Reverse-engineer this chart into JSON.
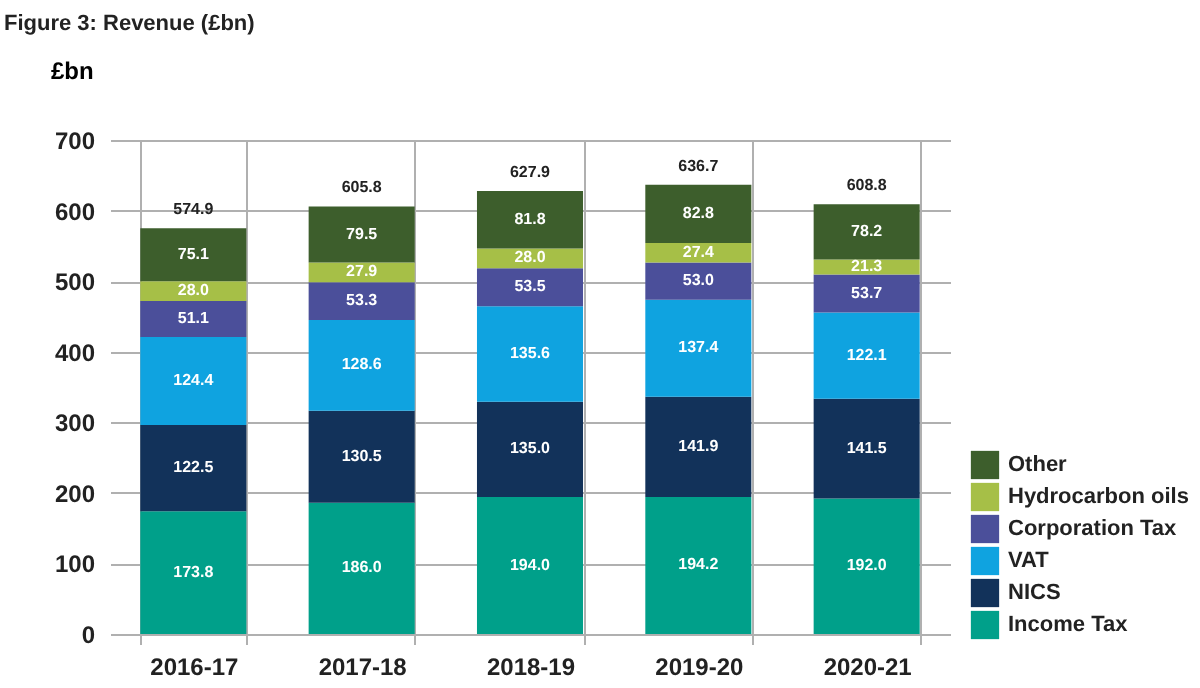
{
  "chart_data": {
    "type": "bar",
    "title": "Figure 3: Revenue (£bn)",
    "ylabel": "£bn",
    "stacked": true,
    "categories": [
      "2016-17",
      "2017-18",
      "2018-19",
      "2019-20",
      "2020-21"
    ],
    "series": [
      {
        "name": "Income Tax",
        "color": "#00a08a",
        "values": [
          173.8,
          186.0,
          194.0,
          194.2,
          192.0
        ],
        "value_labels": [
          "173.8",
          "186.0",
          "194.0",
          "194.2",
          "192.0"
        ]
      },
      {
        "name": "NICS",
        "color": "#12325a",
        "values": [
          122.5,
          130.5,
          135.0,
          141.9,
          141.5
        ],
        "value_labels": [
          "122.5",
          "130.5",
          "135.0",
          "141.9",
          "141.5"
        ]
      },
      {
        "name": "VAT",
        "color": "#0fa3e0",
        "values": [
          124.4,
          128.6,
          135.6,
          137.4,
          122.1
        ],
        "value_labels": [
          "124.4",
          "128.6",
          "135.6",
          "137.4",
          "122.1"
        ]
      },
      {
        "name": "Corporation Tax",
        "color": "#4b4f9a",
        "values": [
          51.1,
          53.3,
          53.5,
          53.0,
          53.7
        ],
        "value_labels": [
          "51.1",
          "53.3",
          "53.5",
          "53.0",
          "53.7"
        ]
      },
      {
        "name": "Hydrocarbon oils",
        "color": "#a6bf47",
        "values": [
          28.0,
          27.9,
          28.0,
          27.4,
          21.3
        ],
        "value_labels": [
          "28.0",
          "27.9",
          "28.0",
          "27.4",
          "21.3"
        ]
      },
      {
        "name": "Other",
        "color": "#3d5e2c",
        "values": [
          75.1,
          79.5,
          81.8,
          82.8,
          78.2
        ],
        "value_labels": [
          "75.1",
          "79.5",
          "81.8",
          "82.8",
          "78.2"
        ]
      }
    ],
    "totals": [
      "574.9",
      "605.8",
      "627.9",
      "636.7",
      "608.8"
    ],
    "ylim": [
      0,
      700
    ],
    "yticks": [
      0,
      100,
      200,
      300,
      400,
      500,
      600,
      700
    ],
    "grid": true,
    "legend": "right"
  }
}
